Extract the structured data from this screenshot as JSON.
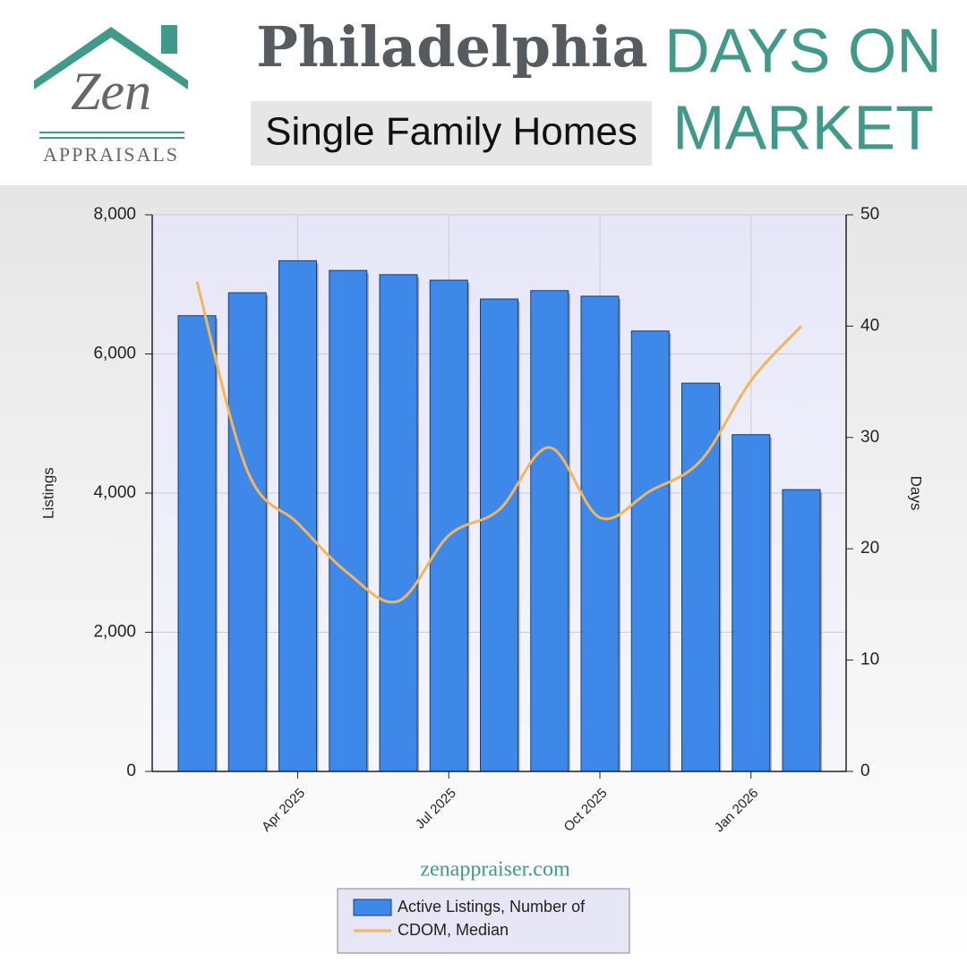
{
  "header": {
    "logo_name": "Zen",
    "logo_sub": "APPRAISALS",
    "city": "Philadelphia",
    "segment": "Single Family Homes",
    "metric_lines": [
      "DAYS ON",
      "MARKET"
    ]
  },
  "footer": {
    "website": "zenappraiser.com"
  },
  "chart_data": {
    "type": "bar-line",
    "categories": [
      null,
      null,
      "Apr 2025",
      null,
      null,
      "Jul 2025",
      null,
      null,
      "Oct 2025",
      null,
      null,
      "Jan 2026",
      null
    ],
    "series": [
      {
        "name": "Active Listings, Number of",
        "type": "bar",
        "color": "#3d88e8",
        "values": [
          6550,
          6880,
          7340,
          7200,
          7140,
          7060,
          6790,
          6910,
          6830,
          6330,
          5580,
          4840,
          4050
        ]
      },
      {
        "name": "CDOM, Median",
        "type": "line",
        "axis": "y2",
        "color": "#f5b55a",
        "values": [
          44,
          27,
          22.3,
          17.8,
          15.3,
          21.2,
          23.5,
          29.1,
          22.8,
          25.2,
          27.9,
          35.1,
          40
        ]
      }
    ],
    "ylabel": "Listings",
    "y2label": "Days",
    "ylim": [
      0,
      8000
    ],
    "yticks": [
      0,
      {
        "value": 2000,
        "label": "2,000"
      },
      {
        "value": 4000,
        "label": "4,000"
      },
      {
        "value": 6000,
        "label": "6,000"
      },
      {
        "value": 8000,
        "label": "8,000"
      }
    ],
    "y2lim": [
      0,
      50
    ],
    "y2ticks": [
      0,
      10,
      20,
      30,
      40,
      50
    ],
    "grid": true,
    "legend": "bottom"
  }
}
